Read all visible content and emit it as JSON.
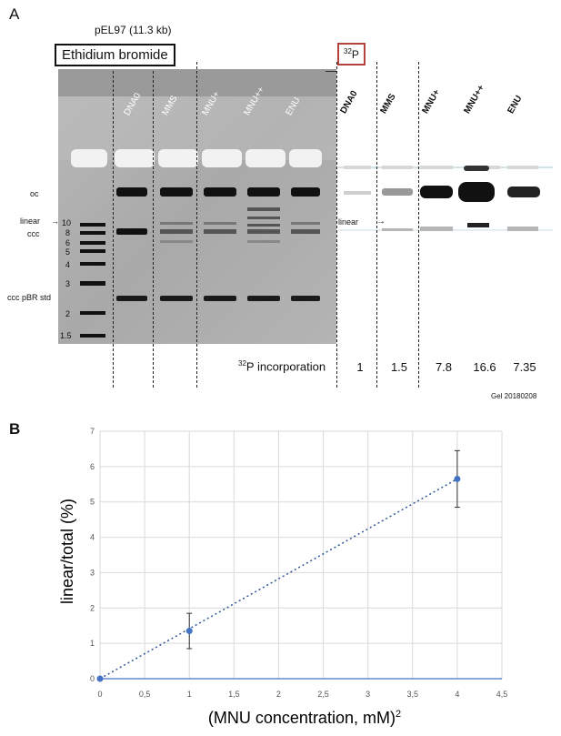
{
  "panelA": {
    "letter": "A",
    "plasmid": "pEL97 (11.3 kb)",
    "etbr_label": "Ethidium bromide",
    "p32_label": "32P",
    "lanes": [
      "DNA0",
      "MMS",
      "MNU+",
      "MNU++",
      "ENU"
    ],
    "left_labels": {
      "oc": "oc",
      "linear": "linear",
      "ccc": "ccc",
      "std": "ccc pBR std"
    },
    "ladder": [
      "10",
      "8",
      "6",
      "5",
      "4",
      "3",
      "2",
      "1.5"
    ],
    "ar_linear_label": "linear",
    "incorporation_label": "32P incorporation",
    "incorporation_values": [
      "1",
      "1.5",
      "7.8",
      "16.6",
      "7.35"
    ],
    "gel_id": "Gel 20180208"
  },
  "panelB": {
    "letter": "B"
  },
  "chart_data": {
    "type": "scatter",
    "xlabel": "(MNU concentration, mM)2",
    "ylabel": "linear/total (%)",
    "xlim": [
      0,
      4.5
    ],
    "ylim": [
      0,
      7
    ],
    "xticks": [
      "0",
      "0,5",
      "1",
      "1,5",
      "2",
      "2,5",
      "3",
      "3,5",
      "4",
      "4,5"
    ],
    "yticks": [
      "0",
      "1",
      "2",
      "3",
      "4",
      "5",
      "6",
      "7"
    ],
    "grid": true,
    "series": [
      {
        "x": [
          0,
          1,
          4
        ],
        "y": [
          0,
          1.35,
          5.65
        ],
        "err": [
          0,
          0.5,
          0.8
        ],
        "color": "#4472c4"
      }
    ],
    "trendline": {
      "style": "dotted",
      "color": "#2f5597",
      "from": [
        0,
        0
      ],
      "to": [
        4,
        5.65
      ]
    }
  }
}
